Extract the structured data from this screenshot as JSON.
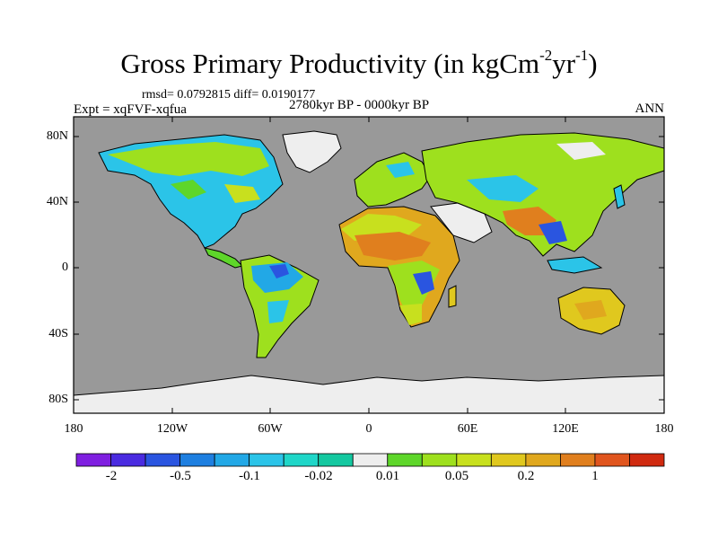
{
  "title_main": "Gross Primary Productivity (in kgCm",
  "title_exp1": "-2",
  "title_mid": "yr",
  "title_exp2": "-1",
  "title_end": ")",
  "stats": "rmsd= 0.0792815 diff= 0.0190177",
  "experiment": "Expt = xqFVF-xqfua",
  "period": "2780kyr BP - 0000kyr BP",
  "season": "ANN",
  "lat_labels": [
    "80N",
    "40N",
    "0",
    "40S",
    "80S"
  ],
  "lon_labels": [
    "180",
    "120W",
    "60W",
    "0",
    "60E",
    "120E",
    "180"
  ],
  "colorbar": {
    "labels": [
      "-2",
      "-0.5",
      "-0.1",
      "-0.02",
      "0.01",
      "0.05",
      "0.2",
      "1"
    ],
    "colors": [
      "#7f1fe0",
      "#4a2be0",
      "#2a55e0",
      "#1e7fe0",
      "#22a8e6",
      "#2bc4e8",
      "#1fd6c8",
      "#14c8a0",
      "#eeeeee",
      "#5ed62a",
      "#9ee01e",
      "#c8e01e",
      "#e0c81e",
      "#e0a81e",
      "#e07f1e",
      "#e0551e",
      "#d02a10"
    ]
  },
  "colors": {
    "ocean": "#999999",
    "ice": "#eeeeee"
  }
}
